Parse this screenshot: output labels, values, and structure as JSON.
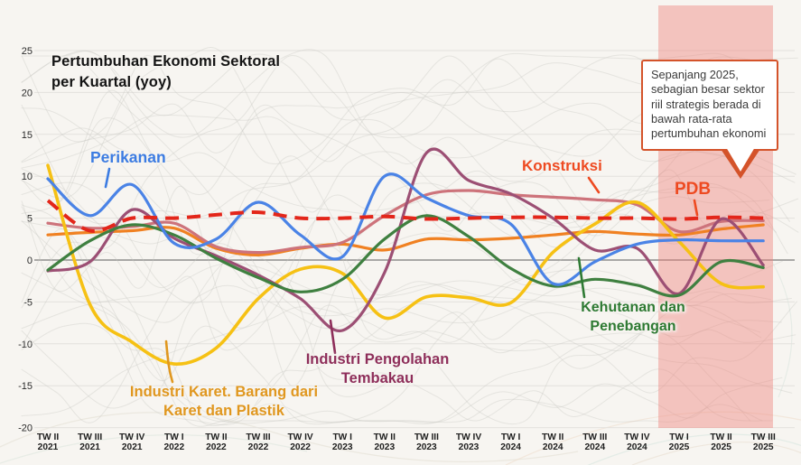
{
  "title": "Pertumbuhan Ekonomi Sektoral\nper Kuartal (yoy)",
  "annotation": {
    "text": "Sepanjang 2025, sebagian besar sektor riil strategis berada di bawah rata-rata pertumbuhan ekonomi",
    "border_color": "#d4532a"
  },
  "chart_data": {
    "type": "line",
    "title": "Pertumbuhan Ekonomi Sektoral per Kuartal (yoy)",
    "grid": true,
    "legend_position": "direct-labels-on-chart",
    "ylim": [
      -20,
      25
    ],
    "y_ticks": [
      25,
      20,
      15,
      10,
      5,
      0,
      -5,
      -10,
      -15,
      -20
    ],
    "x_tick_labels": [
      {
        "q": "TW II",
        "year": "2021"
      },
      {
        "q": "TW III",
        "year": "2021"
      },
      {
        "q": "TW IV",
        "year": "2021"
      },
      {
        "q": "TW I",
        "year": "2022"
      },
      {
        "q": "TW II",
        "year": "2022"
      },
      {
        "q": "TW III",
        "year": "2022"
      },
      {
        "q": "TW IV",
        "year": "2022"
      },
      {
        "q": "TW I",
        "year": "2023"
      },
      {
        "q": "TW II",
        "year": "2023"
      },
      {
        "q": "TW III",
        "year": "2023"
      },
      {
        "q": "TW IV",
        "year": "2023"
      },
      {
        "q": "TW I",
        "year": "2024"
      },
      {
        "q": "TW II",
        "year": "2024"
      },
      {
        "q": "TW III",
        "year": "2024"
      },
      {
        "q": "TW IV",
        "year": "2024"
      },
      {
        "q": "TW I",
        "year": "2025"
      },
      {
        "q": "TW II",
        "year": "2025"
      },
      {
        "q": "TW III",
        "year": "2025"
      }
    ],
    "highlight_band": {
      "from": "TW I 2025",
      "to": "TW III 2025",
      "color": "#ef7f76",
      "opacity": 0.42
    },
    "series": [
      {
        "id": "perikanan",
        "label": "Perikanan",
        "color": "#4a83e6",
        "label_color": "#3c7ce2",
        "dashed": false,
        "values": [
          9.7,
          5.3,
          9.0,
          2.0,
          2.5,
          6.9,
          3.0,
          0.4,
          10.0,
          7.4,
          5.3,
          4.3,
          -2.8,
          -0.2,
          1.9,
          2.4,
          2.3,
          2.3
        ]
      },
      {
        "id": "konstruksi",
        "label": "Konstruksi",
        "color": "#cd737b",
        "label_color": "#ee4a21",
        "dashed": false,
        "values": [
          4.4,
          3.8,
          4.0,
          4.4,
          1.6,
          0.9,
          1.5,
          2.1,
          5.3,
          7.8,
          8.3,
          7.8,
          7.5,
          7.2,
          6.6,
          3.4,
          4.6,
          4.7
        ]
      },
      {
        "id": "pdb",
        "label": "PDB",
        "color": "#e3261a",
        "label_color": "#ee4a21",
        "dashed": true,
        "values": [
          7.1,
          3.5,
          5.0,
          5.0,
          5.4,
          5.7,
          5.0,
          5.0,
          5.2,
          4.9,
          5.0,
          5.1,
          5.1,
          5.0,
          5.0,
          4.9,
          5.1,
          5.0
        ]
      },
      {
        "id": "kehutanan-dan-penebangan",
        "label": "Kehutanan dan Penebangan",
        "color": "#3f8040",
        "label_color": "#2e7a33",
        "dashed": false,
        "values": [
          -1.2,
          2.3,
          4.2,
          3.0,
          0.2,
          -2.1,
          -3.8,
          -2.3,
          2.5,
          5.3,
          2.8,
          -1.0,
          -3.1,
          -2.3,
          -3.0,
          -4.2,
          -0.2,
          -0.9
        ]
      },
      {
        "id": "industri-pengolahan-tembakau",
        "label": "Industri Pengolahan Tembakau",
        "color": "#9c4f74",
        "label_color": "#8e2e5a",
        "dashed": false,
        "values": [
          -1.3,
          -0.2,
          6.0,
          2.6,
          0.5,
          -1.8,
          -4.6,
          -8.4,
          -1.5,
          12.8,
          9.5,
          7.9,
          5.0,
          1.2,
          1.4,
          -4.0,
          4.9,
          -0.6
        ]
      },
      {
        "id": "industri-karet-barang-dari-karet-dan-plastik",
        "label": "Industri Karet. Barang dari Karet dan Plastik",
        "color": "#f6c114",
        "label_color": "#e0971f",
        "dashed": false,
        "values": [
          11.3,
          -5.3,
          -9.8,
          -12.4,
          -10.5,
          -4.6,
          -1.1,
          -1.6,
          -6.9,
          -4.4,
          -4.5,
          -5.1,
          0.9,
          4.3,
          6.9,
          2.2,
          -2.8,
          -3.2
        ]
      },
      {
        "id": "seri-oranye-tanpa-label",
        "label": "",
        "color": "#f08122",
        "label_color": "#f08122",
        "dashed": false,
        "values": [
          3.0,
          3.3,
          3.5,
          3.8,
          1.4,
          0.6,
          1.4,
          1.9,
          1.2,
          2.5,
          2.4,
          2.6,
          3.0,
          3.4,
          3.1,
          3.0,
          3.7,
          4.2
        ]
      }
    ],
    "background_series_note": "banyak garis sektor lain berwarna abu-abu tipis di latar belakang"
  }
}
